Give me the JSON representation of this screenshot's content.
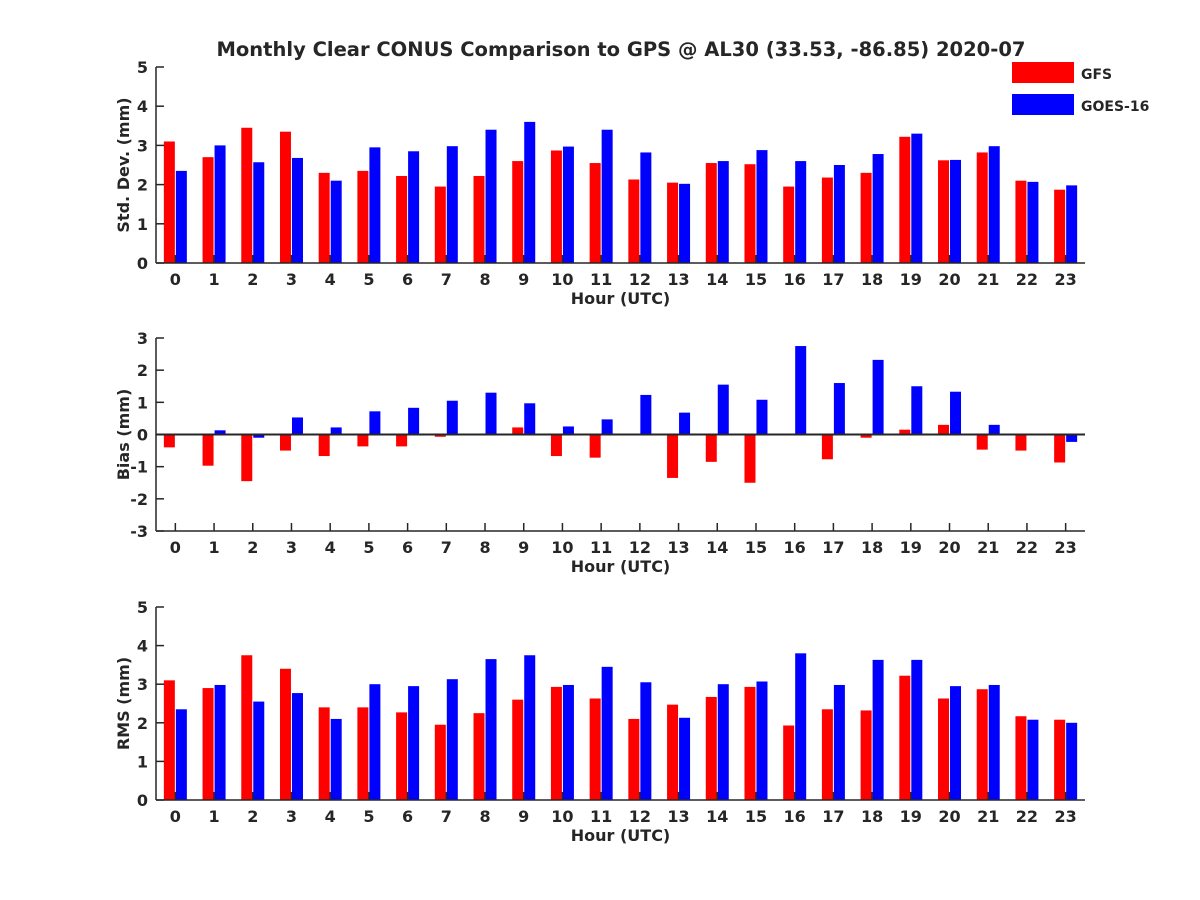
{
  "figure": {
    "title": "Monthly Clear CONUS Comparison to GPS @ AL30 (33.53, -86.85) 2020-07",
    "legend": {
      "placement": "top-right",
      "entries": [
        {
          "name": "GFS",
          "color": "#ff0000"
        },
        {
          "name": "GOES-16",
          "color": "#0000ff"
        }
      ]
    }
  },
  "chart_data": [
    {
      "type": "bar",
      "title": "Monthly Clear CONUS Comparison to GPS @ AL30 (33.53, -86.85) 2020-07",
      "xlabel": "Hour (UTC)",
      "ylabel": "Std. Dev. (mm)",
      "ylim": [
        0,
        5
      ],
      "yticks": [
        0,
        1,
        2,
        3,
        4,
        5
      ],
      "categories": [
        "0",
        "1",
        "2",
        "3",
        "4",
        "5",
        "6",
        "7",
        "8",
        "9",
        "10",
        "11",
        "12",
        "13",
        "14",
        "15",
        "16",
        "17",
        "18",
        "19",
        "20",
        "21",
        "22",
        "23"
      ],
      "grid": false,
      "series": [
        {
          "name": "GFS",
          "color": "#ff0000",
          "values": [
            3.1,
            2.7,
            3.45,
            3.35,
            2.3,
            2.35,
            2.22,
            1.95,
            2.22,
            2.6,
            2.87,
            2.55,
            2.13,
            2.05,
            2.55,
            2.52,
            1.95,
            2.18,
            2.3,
            3.22,
            2.62,
            2.82,
            2.1,
            1.87
          ]
        },
        {
          "name": "GOES-16",
          "color": "#0000ff",
          "values": [
            2.35,
            3.0,
            2.57,
            2.68,
            2.1,
            2.95,
            2.85,
            2.98,
            3.4,
            3.6,
            2.97,
            3.4,
            2.82,
            2.02,
            2.6,
            2.88,
            2.6,
            2.5,
            2.78,
            3.3,
            2.63,
            2.98,
            2.07,
            1.98
          ]
        }
      ]
    },
    {
      "type": "bar",
      "xlabel": "Hour (UTC)",
      "ylabel": "Bias (mm)",
      "ylim": [
        -3,
        3
      ],
      "yticks": [
        -3,
        -2,
        -1,
        0,
        1,
        2,
        3
      ],
      "categories": [
        "0",
        "1",
        "2",
        "3",
        "4",
        "5",
        "6",
        "7",
        "8",
        "9",
        "10",
        "11",
        "12",
        "13",
        "14",
        "15",
        "16",
        "17",
        "18",
        "19",
        "20",
        "21",
        "22",
        "23"
      ],
      "grid": false,
      "series": [
        {
          "name": "GFS",
          "color": "#ff0000",
          "values": [
            -0.4,
            -0.97,
            -1.45,
            -0.5,
            -0.67,
            -0.37,
            -0.37,
            -0.07,
            0.0,
            0.22,
            -0.67,
            -0.72,
            0.0,
            -1.35,
            -0.85,
            -1.5,
            0.0,
            -0.77,
            -0.1,
            0.15,
            0.3,
            -0.47,
            -0.5,
            -0.87
          ]
        },
        {
          "name": "GOES-16",
          "color": "#0000ff",
          "values": [
            0.0,
            0.13,
            -0.1,
            0.53,
            0.22,
            0.72,
            0.83,
            1.05,
            1.3,
            0.97,
            0.25,
            0.47,
            1.23,
            0.68,
            1.55,
            1.08,
            2.75,
            1.6,
            2.32,
            1.5,
            1.33,
            0.3,
            0.03,
            -0.23
          ]
        }
      ]
    },
    {
      "type": "bar",
      "xlabel": "Hour (UTC)",
      "ylabel": "RMS (mm)",
      "ylim": [
        0,
        5
      ],
      "yticks": [
        0,
        1,
        2,
        3,
        4,
        5
      ],
      "categories": [
        "0",
        "1",
        "2",
        "3",
        "4",
        "5",
        "6",
        "7",
        "8",
        "9",
        "10",
        "11",
        "12",
        "13",
        "14",
        "15",
        "16",
        "17",
        "18",
        "19",
        "20",
        "21",
        "22",
        "23"
      ],
      "grid": false,
      "series": [
        {
          "name": "GFS",
          "color": "#ff0000",
          "values": [
            3.1,
            2.9,
            3.75,
            3.4,
            2.4,
            2.4,
            2.27,
            1.95,
            2.25,
            2.6,
            2.93,
            2.63,
            2.1,
            2.47,
            2.67,
            2.93,
            1.93,
            2.35,
            2.32,
            3.22,
            2.63,
            2.87,
            2.17,
            2.08
          ]
        },
        {
          "name": "GOES-16",
          "color": "#0000ff",
          "values": [
            2.35,
            2.98,
            2.55,
            2.77,
            2.1,
            3.0,
            2.95,
            3.13,
            3.65,
            3.75,
            2.98,
            3.45,
            3.05,
            2.13,
            3.0,
            3.07,
            3.8,
            2.98,
            3.63,
            3.63,
            2.95,
            2.98,
            2.08,
            2.0
          ]
        }
      ]
    }
  ]
}
